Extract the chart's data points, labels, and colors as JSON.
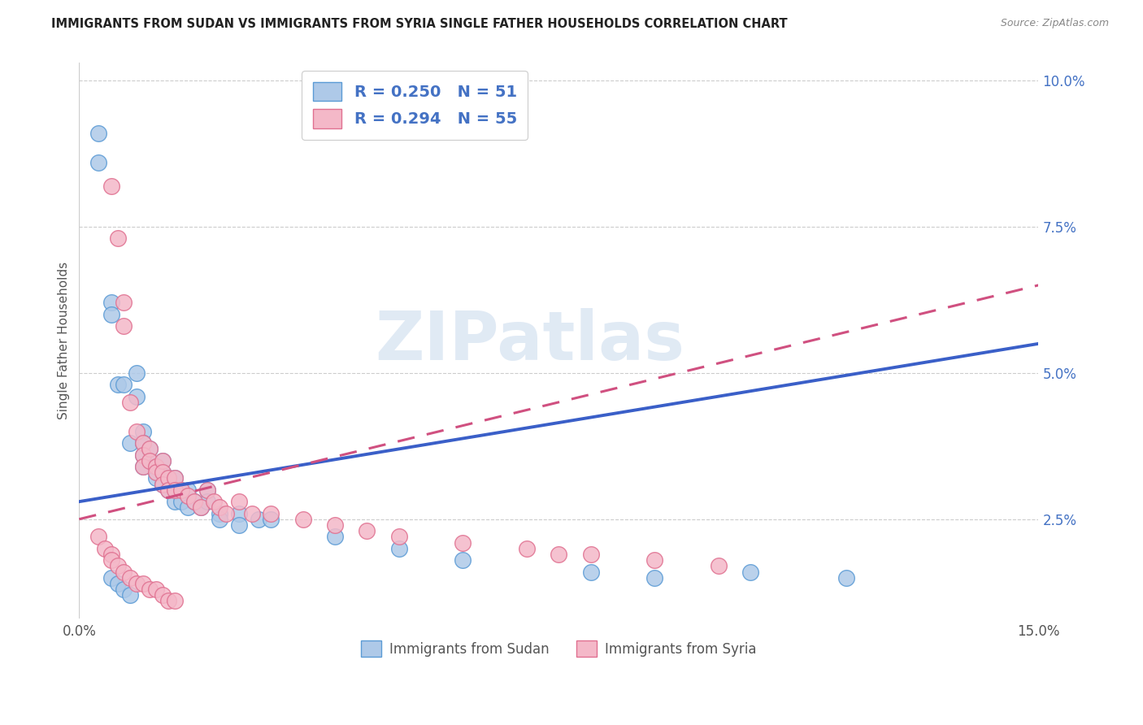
{
  "title": "IMMIGRANTS FROM SUDAN VS IMMIGRANTS FROM SYRIA SINGLE FATHER HOUSEHOLDS CORRELATION CHART",
  "source": "Source: ZipAtlas.com",
  "ylabel": "Single Father Households",
  "xlim": [
    0.0,
    0.15
  ],
  "ylim": [
    0.008,
    0.103
  ],
  "yticks_right": [
    0.025,
    0.05,
    0.075,
    0.1
  ],
  "ytick_right_labels": [
    "2.5%",
    "5.0%",
    "7.5%",
    "10.0%"
  ],
  "sudan_color": "#aec9e8",
  "sudan_edge_color": "#5b9bd5",
  "syria_color": "#f4b8c8",
  "syria_edge_color": "#e07090",
  "sudan_line_color": "#3a5fc8",
  "syria_line_color": "#d05080",
  "legend_R_sudan": "0.250",
  "legend_N_sudan": "51",
  "legend_R_syria": "0.294",
  "legend_N_syria": "55",
  "legend_label_sudan": "Immigrants from Sudan",
  "legend_label_syria": "Immigrants from Syria",
  "watermark": "ZIPatlas",
  "sudan_x": [
    0.003,
    0.003,
    0.005,
    0.005,
    0.006,
    0.007,
    0.008,
    0.009,
    0.009,
    0.01,
    0.01,
    0.01,
    0.01,
    0.011,
    0.011,
    0.012,
    0.012,
    0.012,
    0.013,
    0.013,
    0.013,
    0.014,
    0.014,
    0.015,
    0.015,
    0.015,
    0.016,
    0.016,
    0.017,
    0.017,
    0.018,
    0.019,
    0.02,
    0.02,
    0.022,
    0.022,
    0.025,
    0.025,
    0.028,
    0.03,
    0.04,
    0.05,
    0.06,
    0.08,
    0.09,
    0.105,
    0.12,
    0.005,
    0.006,
    0.007,
    0.008
  ],
  "sudan_y": [
    0.091,
    0.086,
    0.062,
    0.06,
    0.048,
    0.048,
    0.038,
    0.05,
    0.046,
    0.04,
    0.038,
    0.036,
    0.034,
    0.037,
    0.035,
    0.034,
    0.033,
    0.032,
    0.035,
    0.033,
    0.031,
    0.032,
    0.03,
    0.032,
    0.03,
    0.028,
    0.03,
    0.028,
    0.03,
    0.027,
    0.028,
    0.027,
    0.03,
    0.028,
    0.026,
    0.025,
    0.026,
    0.024,
    0.025,
    0.025,
    0.022,
    0.02,
    0.018,
    0.016,
    0.015,
    0.016,
    0.015,
    0.015,
    0.014,
    0.013,
    0.012
  ],
  "syria_x": [
    0.005,
    0.006,
    0.007,
    0.007,
    0.008,
    0.009,
    0.01,
    0.01,
    0.01,
    0.011,
    0.011,
    0.012,
    0.012,
    0.013,
    0.013,
    0.013,
    0.014,
    0.014,
    0.015,
    0.015,
    0.016,
    0.017,
    0.018,
    0.019,
    0.02,
    0.021,
    0.022,
    0.023,
    0.025,
    0.027,
    0.03,
    0.035,
    0.04,
    0.045,
    0.05,
    0.06,
    0.07,
    0.075,
    0.08,
    0.09,
    0.1,
    0.003,
    0.004,
    0.005,
    0.005,
    0.006,
    0.007,
    0.008,
    0.009,
    0.01,
    0.011,
    0.012,
    0.013,
    0.014,
    0.015
  ],
  "syria_y": [
    0.082,
    0.073,
    0.062,
    0.058,
    0.045,
    0.04,
    0.038,
    0.036,
    0.034,
    0.037,
    0.035,
    0.034,
    0.033,
    0.035,
    0.033,
    0.031,
    0.032,
    0.03,
    0.032,
    0.03,
    0.03,
    0.029,
    0.028,
    0.027,
    0.03,
    0.028,
    0.027,
    0.026,
    0.028,
    0.026,
    0.026,
    0.025,
    0.024,
    0.023,
    0.022,
    0.021,
    0.02,
    0.019,
    0.019,
    0.018,
    0.017,
    0.022,
    0.02,
    0.019,
    0.018,
    0.017,
    0.016,
    0.015,
    0.014,
    0.014,
    0.013,
    0.013,
    0.012,
    0.011,
    0.011
  ]
}
